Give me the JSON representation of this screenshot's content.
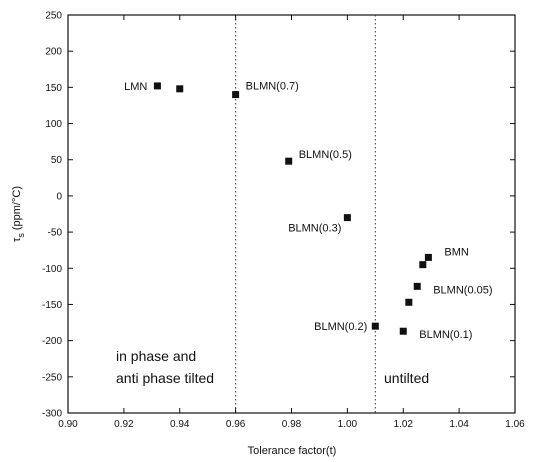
{
  "chart_data": {
    "type": "scatter",
    "xlabel": "Tolerance factor(t)",
    "ylabel_main": "τ",
    "ylabel_sub": "s",
    "ylabel_unit": "(ppm/°C)",
    "xlim": [
      0.9,
      1.06
    ],
    "ylim": [
      -300,
      250
    ],
    "xticks": [
      0.9,
      0.92,
      0.94,
      0.96,
      0.98,
      1.0,
      1.02,
      1.04,
      1.06
    ],
    "xtick_labels": [
      "0.90",
      "0.92",
      "0.94",
      "0.96",
      "0.98",
      "1.00",
      "1.02",
      "1.04",
      "1.06"
    ],
    "yticks": [
      250,
      200,
      150,
      100,
      50,
      0,
      -50,
      -100,
      -150,
      -200,
      -250,
      -300
    ],
    "ytick_labels": [
      "250",
      "200",
      "150",
      "100",
      "50",
      "0",
      "-50",
      "-100",
      "-150",
      "-200",
      "-250",
      "-300"
    ],
    "points": [
      {
        "x": 0.932,
        "y": 152,
        "label": "LMN"
      },
      {
        "x": 0.94,
        "y": 148,
        "label": ""
      },
      {
        "x": 0.96,
        "y": 140,
        "label": "BLMN(0.7)"
      },
      {
        "x": 0.979,
        "y": 48,
        "label": "BLMN(0.5)"
      },
      {
        "x": 1.0,
        "y": -30,
        "label": "BLMN(0.3)"
      },
      {
        "x": 1.01,
        "y": -180,
        "label": "BLMN(0.2)"
      },
      {
        "x": 1.02,
        "y": -187,
        "label": "BLMN(0.1)"
      },
      {
        "x": 1.022,
        "y": -147,
        "label": ""
      },
      {
        "x": 1.025,
        "y": -125,
        "label": "BLMN(0.05)"
      },
      {
        "x": 1.027,
        "y": -95,
        "label": ""
      },
      {
        "x": 1.029,
        "y": -85,
        "label": "BMN"
      }
    ],
    "vlines": [
      0.96,
      1.01
    ],
    "region_labels": [
      {
        "lines": [
          "in phase and",
          "anti phase tilted"
        ]
      },
      {
        "lines": [
          "untilted"
        ]
      }
    ]
  }
}
